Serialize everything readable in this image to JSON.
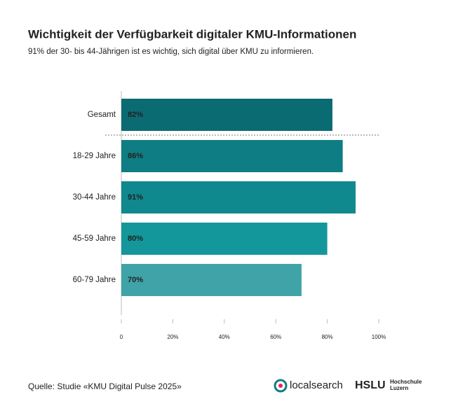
{
  "chart_data": {
    "type": "bar",
    "orientation": "horizontal",
    "title": "Wichtigkeit der Verfügbarkeit digitaler KMU-Informationen",
    "subtitle": "91% der 30- bis 44-Jährigen ist es wichtig, sich digital über KMU zu informieren.",
    "categories": [
      "Gesamt",
      "18-29 Jahre",
      "30-44 Jahre",
      "45-59 Jahre",
      "60-79 Jahre"
    ],
    "values": [
      82,
      86,
      91,
      80,
      70
    ],
    "value_labels": [
      "82%",
      "86%",
      "91%",
      "80%",
      "70%"
    ],
    "colors": [
      "#0b6b72",
      "#0e7d84",
      "#0f888e",
      "#14979b",
      "#3fa3a7"
    ],
    "xlim": [
      0,
      100
    ],
    "xticks": [
      0,
      {
        "value": 20,
        "label": "20%"
      },
      {
        "value": 40,
        "label": "40%"
      },
      {
        "value": 60,
        "label": "60%"
      },
      {
        "value": 80,
        "label": "80%"
      },
      {
        "value": 100,
        "label": "100%"
      }
    ],
    "grid": false
  },
  "footer": {
    "source": "Quelle: Studie «KMU Digital Pulse 2025»",
    "logo_1": "localsearch",
    "logo_2": "HSLU",
    "logo_2_lines": [
      "Hochschule",
      "Luzern"
    ]
  }
}
